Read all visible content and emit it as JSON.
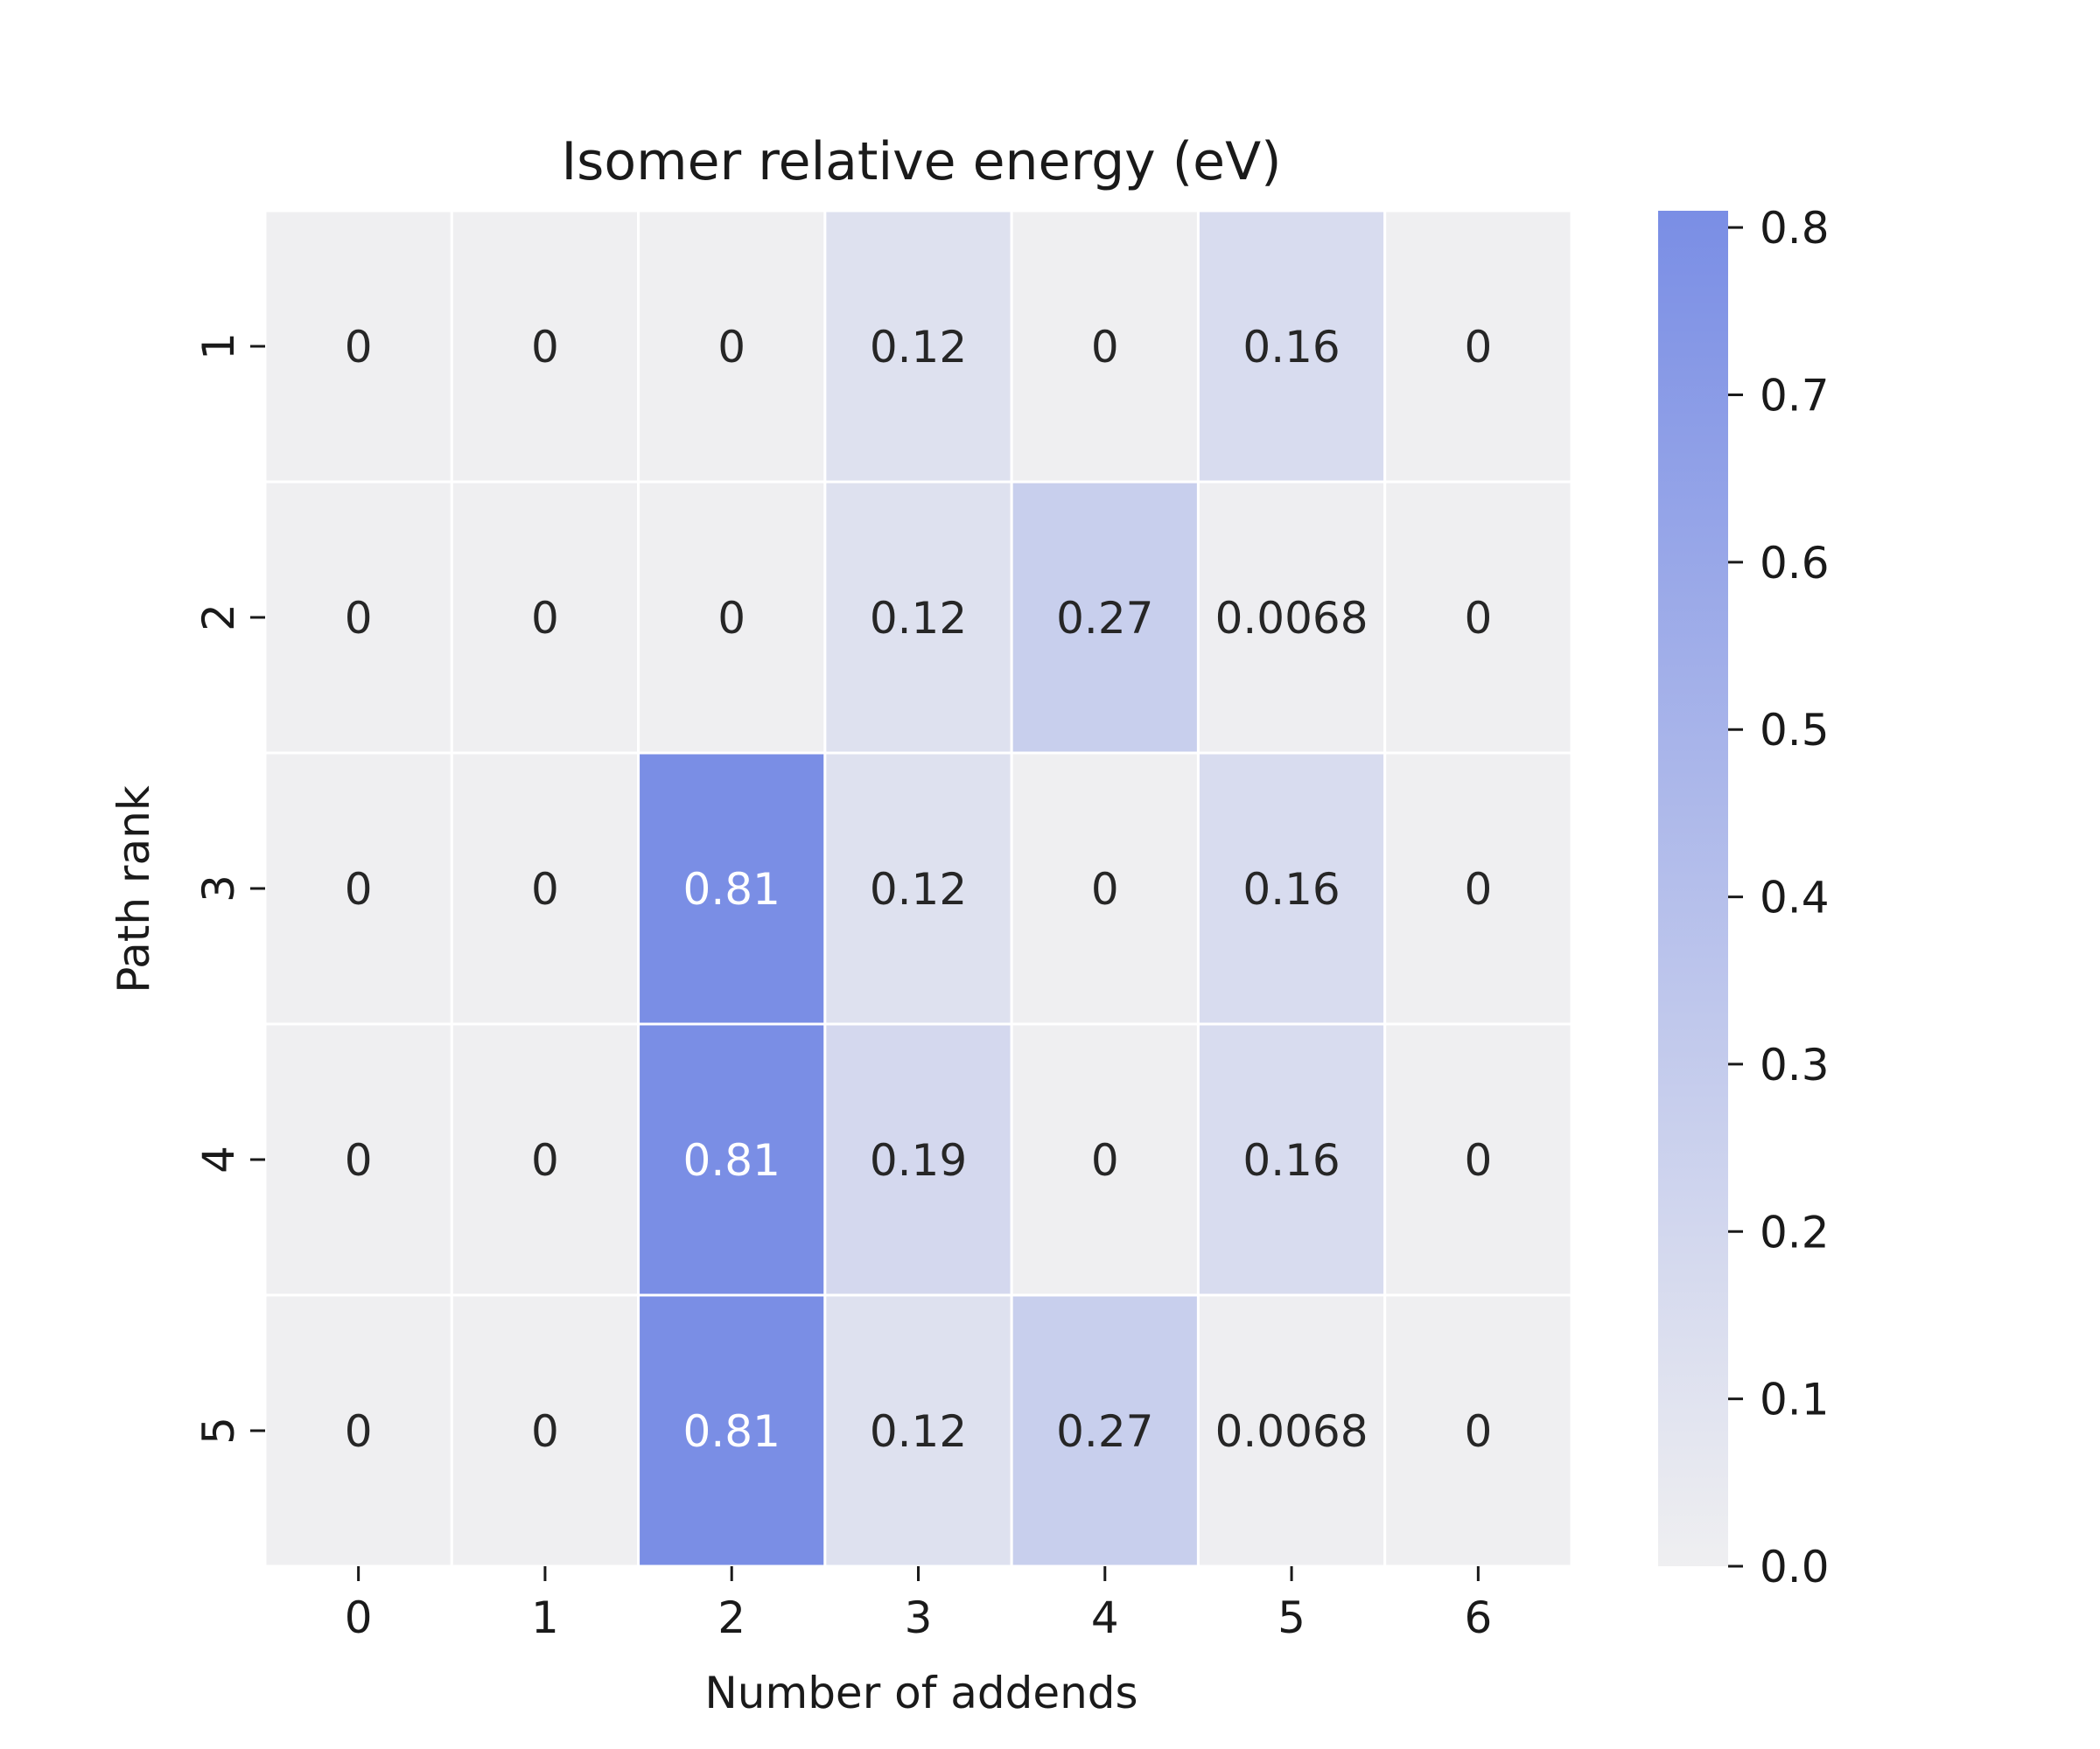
{
  "chart_data": {
    "type": "heatmap",
    "title": "Isomer relative energy (eV)",
    "xlabel": "Number of addends",
    "ylabel": "Path rank",
    "x_categories": [
      "0",
      "1",
      "2",
      "3",
      "4",
      "5",
      "6"
    ],
    "y_categories": [
      "1",
      "2",
      "3",
      "4",
      "5"
    ],
    "values": [
      [
        0,
        0,
        0,
        0.12,
        0,
        0.16,
        0
      ],
      [
        0,
        0,
        0,
        0.12,
        0.27,
        0.0068,
        0
      ],
      [
        0,
        0,
        0.81,
        0.12,
        0,
        0.16,
        0
      ],
      [
        0,
        0,
        0.81,
        0.19,
        0,
        0.16,
        0
      ],
      [
        0,
        0,
        0.81,
        0.12,
        0.27,
        0.0068,
        0
      ]
    ],
    "cell_labels": [
      [
        "0",
        "0",
        "0",
        "0.12",
        "0",
        "0.16",
        "0"
      ],
      [
        "0",
        "0",
        "0",
        "0.12",
        "0.27",
        "0.0068",
        "0"
      ],
      [
        "0",
        "0",
        "0.81",
        "0.12",
        "0",
        "0.16",
        "0"
      ],
      [
        "0",
        "0",
        "0.81",
        "0.19",
        "0",
        "0.16",
        "0"
      ],
      [
        "0",
        "0",
        "0.81",
        "0.12",
        "0.27",
        "0.0068",
        "0"
      ]
    ],
    "colorbar": {
      "min": 0.0,
      "max": 0.81,
      "ticks": [
        "0.0",
        "0.1",
        "0.2",
        "0.3",
        "0.4",
        "0.5",
        "0.6",
        "0.7",
        "0.8"
      ],
      "color_low": "#efeff1",
      "color_high": "#7a8ee5"
    },
    "grid_line_color": "#ffffff",
    "legend": "colorbar-right"
  }
}
